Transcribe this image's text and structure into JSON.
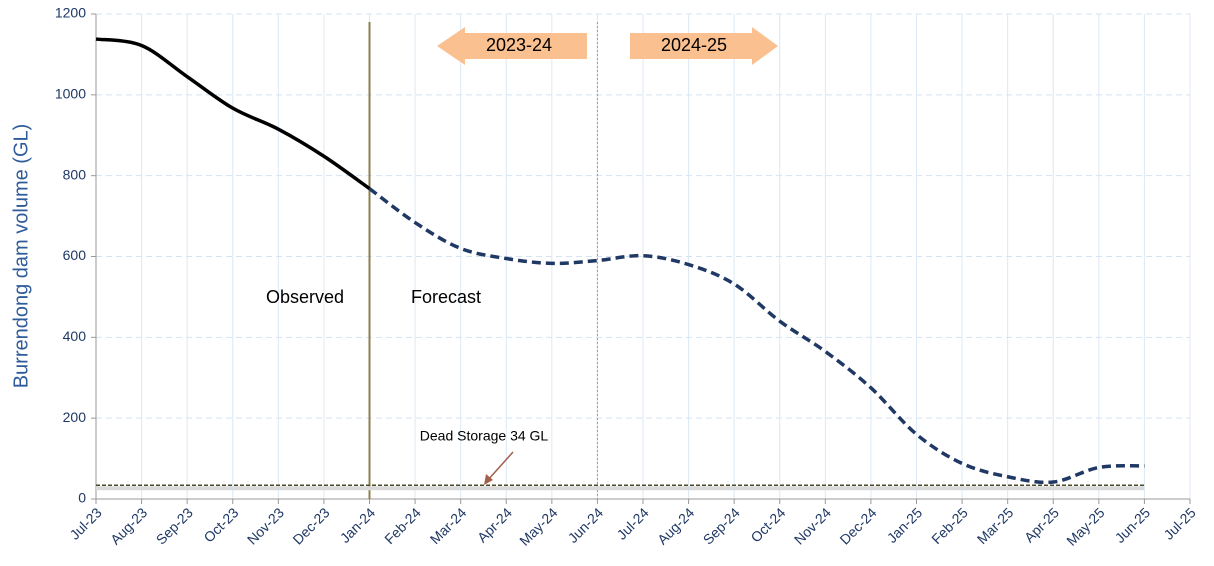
{
  "chart_data": {
    "type": "line",
    "ylabel": "Burrendong dam volume (GL)",
    "categories": [
      "Jul-23",
      "Aug-23",
      "Sep-23",
      "Oct-23",
      "Nov-23",
      "Dec-23",
      "Jan-24",
      "Feb-24",
      "Mar-24",
      "Apr-24",
      "May-24",
      "Jun-24",
      "Jul-24",
      "Aug-24",
      "Sep-24",
      "Oct-24",
      "Nov-24",
      "Dec-24",
      "Jan-25",
      "Feb-25",
      "Mar-25",
      "Apr-25",
      "May-25",
      "Jun-25",
      "Jul-25"
    ],
    "series": [
      {
        "name": "Observed",
        "color": "#000000",
        "dash": false,
        "values": [
          1138,
          1122,
          1045,
          967,
          915,
          848,
          768,
          null,
          null,
          null,
          null,
          null,
          null,
          null,
          null,
          null,
          null,
          null,
          null,
          null,
          null,
          null,
          null,
          null,
          null
        ]
      },
      {
        "name": "Forecast",
        "color": "#1f3864",
        "dash": true,
        "values": [
          null,
          null,
          null,
          null,
          null,
          null,
          768,
          684,
          620,
          595,
          583,
          590,
          602,
          580,
          532,
          440,
          365,
          275,
          160,
          88,
          55,
          42,
          78,
          82,
          null
        ]
      }
    ],
    "dead_storage": {
      "value": 34,
      "label": "Dead Storage 34 GL"
    },
    "periods": [
      "2023-24",
      "2024-25"
    ],
    "ylim": [
      0,
      1200
    ],
    "yticks": [
      0,
      200,
      400,
      600,
      800,
      1000,
      1200
    ],
    "grid": true
  }
}
